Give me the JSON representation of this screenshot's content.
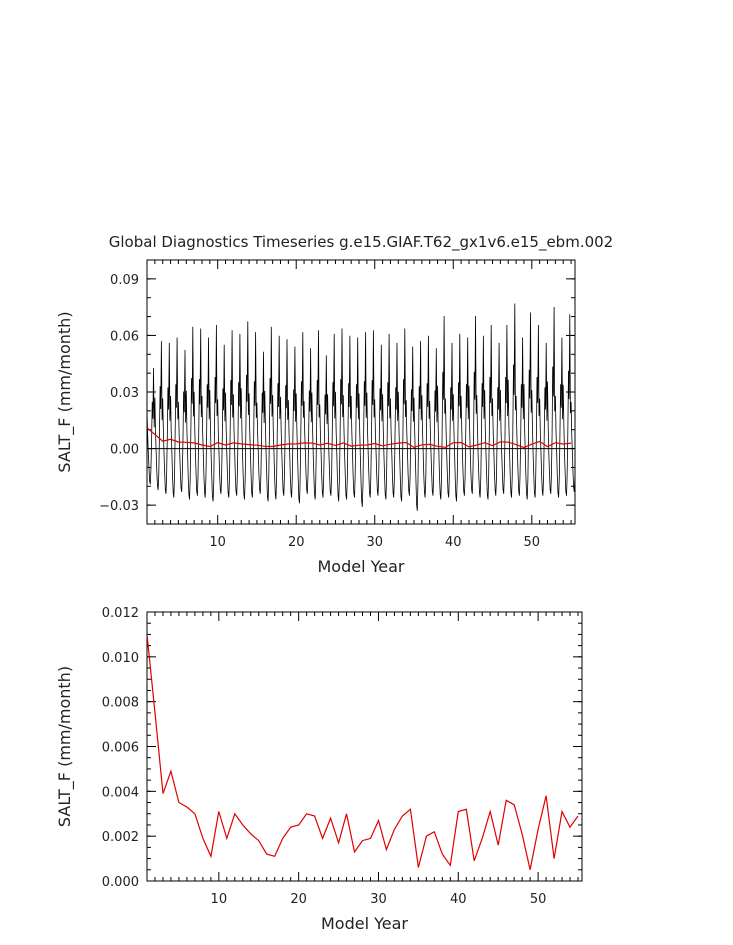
{
  "title": "Global Diagnostics Timeseries g.e15.GIAF.T62_gx1v6.e15_ebm.002",
  "colors": {
    "monthly": "#000000",
    "annual": "#e00000",
    "axis": "#000000"
  },
  "chart_data": [
    {
      "type": "line",
      "xlabel": "Model Year",
      "ylabel": "SALT_F (mm/month)",
      "xlim": [
        1,
        55.5
      ],
      "ylim": [
        -0.04,
        0.1
      ],
      "xticks": [
        10,
        20,
        30,
        40,
        50
      ],
      "xtick_labels": [
        "10",
        "20",
        "30",
        "40",
        "50"
      ],
      "yticks": [
        -0.03,
        0.0,
        0.03,
        0.06,
        0.09
      ],
      "ytick_labels": [
        "−0.03",
        "0.00",
        "0.03",
        "0.06",
        "0.09"
      ],
      "zero_line": true,
      "series": [
        {
          "style": "monthly",
          "x_start": 1.0,
          "x_step": 0.08333,
          "peaks": [
            0.045,
            0.06,
            0.059,
            0.062,
            0.055,
            0.068,
            0.067,
            0.062,
            0.069,
            0.058,
            0.066,
            0.064,
            0.071,
            0.065,
            0.054,
            0.068,
            0.063,
            0.061,
            0.057,
            0.065,
            0.056,
            0.066,
            0.052,
            0.064,
            0.067,
            0.063,
            0.062,
            0.065,
            0.066,
            0.058,
            0.064,
            0.059,
            0.067,
            0.057,
            0.06,
            0.063,
            0.056,
            0.074,
            0.059,
            0.064,
            0.062,
            0.074,
            0.063,
            0.069,
            0.059,
            0.069,
            0.081,
            0.062,
            0.076,
            0.069,
            0.059,
            0.079,
            0.062,
            0.075,
            0.055
          ],
          "troughs": [
            -0.019,
            -0.022,
            -0.024,
            -0.026,
            -0.023,
            -0.027,
            -0.025,
            -0.026,
            -0.028,
            -0.024,
            -0.026,
            -0.025,
            -0.027,
            -0.026,
            -0.024,
            -0.028,
            -0.027,
            -0.025,
            -0.026,
            -0.029,
            -0.024,
            -0.027,
            -0.026,
            -0.025,
            -0.028,
            -0.027,
            -0.026,
            -0.031,
            -0.026,
            -0.025,
            -0.027,
            -0.026,
            -0.028,
            -0.025,
            -0.033,
            -0.026,
            -0.025,
            -0.027,
            -0.026,
            -0.028,
            -0.025,
            -0.024,
            -0.026,
            -0.027,
            -0.025,
            -0.024,
            -0.026,
            -0.025,
            -0.027,
            -0.026,
            -0.025,
            -0.024,
            -0.026,
            -0.025,
            -0.023
          ]
        },
        {
          "style": "annual",
          "x": [
            1,
            2,
            3,
            4,
            5,
            6,
            7,
            8,
            9,
            10,
            11,
            12,
            13,
            14,
            15,
            16,
            17,
            18,
            19,
            20,
            21,
            22,
            23,
            24,
            25,
            26,
            27,
            28,
            29,
            30,
            31,
            32,
            33,
            34,
            35,
            36,
            37,
            38,
            39,
            40,
            41,
            42,
            43,
            44,
            45,
            46,
            47,
            48,
            49,
            50,
            51,
            52,
            53,
            54,
            55
          ],
          "values": [
            0.011,
            0.0075,
            0.0039,
            0.0049,
            0.0035,
            0.0033,
            0.003,
            0.0019,
            0.0011,
            0.0031,
            0.0019,
            0.003,
            0.0025,
            0.0021,
            0.0018,
            0.0012,
            0.0011,
            0.0019,
            0.0024,
            0.0025,
            0.003,
            0.0029,
            0.0019,
            0.0028,
            0.0017,
            0.003,
            0.0013,
            0.0018,
            0.0019,
            0.0027,
            0.0014,
            0.0023,
            0.0029,
            0.0032,
            0.0006,
            0.002,
            0.0022,
            0.0012,
            0.0007,
            0.0031,
            0.0032,
            0.0009,
            0.0019,
            0.0031,
            0.0016,
            0.0036,
            0.0034,
            0.0021,
            0.0005,
            0.0023,
            0.0038,
            0.001,
            0.0031,
            0.0024,
            0.0029
          ]
        }
      ]
    },
    {
      "type": "line",
      "xlabel": "Model Year",
      "ylabel": "SALT_F (mm/month)",
      "xlim": [
        1,
        55.5
      ],
      "ylim": [
        0,
        0.012
      ],
      "xticks": [
        10,
        20,
        30,
        40,
        50
      ],
      "xtick_labels": [
        "10",
        "20",
        "30",
        "40",
        "50"
      ],
      "yticks": [
        0,
        0.002,
        0.004,
        0.006,
        0.008,
        0.01,
        0.012
      ],
      "ytick_labels": [
        "0.000",
        "0.002",
        "0.004",
        "0.006",
        "0.008",
        "0.010",
        "0.012"
      ],
      "series": [
        {
          "style": "annual",
          "x": [
            1,
            2,
            3,
            4,
            5,
            6,
            7,
            8,
            9,
            10,
            11,
            12,
            13,
            14,
            15,
            16,
            17,
            18,
            19,
            20,
            21,
            22,
            23,
            24,
            25,
            26,
            27,
            28,
            29,
            30,
            31,
            32,
            33,
            34,
            35,
            36,
            37,
            38,
            39,
            40,
            41,
            42,
            43,
            44,
            45,
            46,
            47,
            48,
            49,
            50,
            51,
            52,
            53,
            54,
            55
          ],
          "values": [
            0.011,
            0.0075,
            0.0039,
            0.0049,
            0.0035,
            0.0033,
            0.003,
            0.0019,
            0.0011,
            0.0031,
            0.0019,
            0.003,
            0.0025,
            0.0021,
            0.0018,
            0.0012,
            0.0011,
            0.0019,
            0.0024,
            0.0025,
            0.003,
            0.0029,
            0.0019,
            0.0028,
            0.0017,
            0.003,
            0.0013,
            0.0018,
            0.0019,
            0.0027,
            0.0014,
            0.0023,
            0.0029,
            0.0032,
            0.0006,
            0.002,
            0.0022,
            0.0012,
            0.0007,
            0.0031,
            0.0032,
            0.0009,
            0.0019,
            0.0031,
            0.0016,
            0.0036,
            0.0034,
            0.0021,
            0.0005,
            0.0023,
            0.0038,
            0.001,
            0.0031,
            0.0024,
            0.0029
          ]
        }
      ]
    }
  ]
}
